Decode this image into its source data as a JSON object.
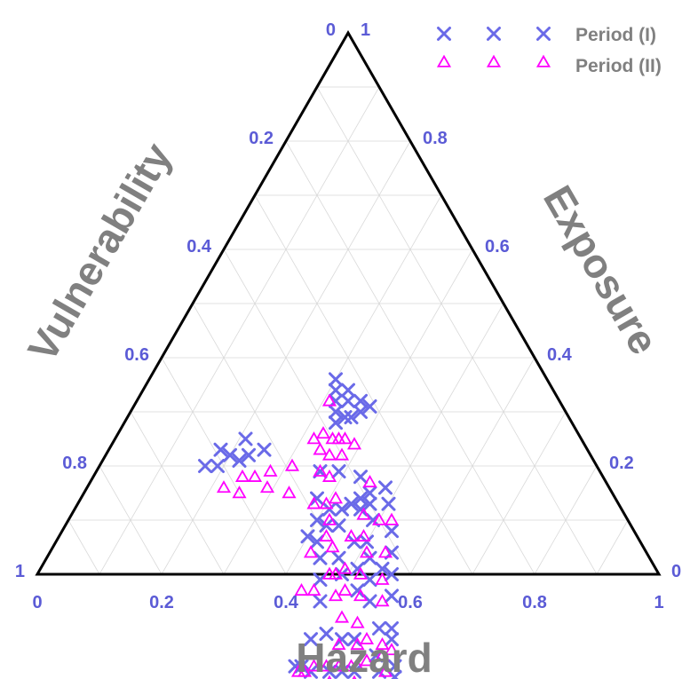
{
  "colors": {
    "axis": "#000000",
    "grid": "#d9d9d9",
    "tick_label": "#5b5bd6",
    "axis_title": "#808080",
    "legend_text": "#808080",
    "period1": "#6a6ae8",
    "period2": "#ff00ff"
  },
  "chart_data": {
    "type": "scatter",
    "subtype": "ternary",
    "axes": {
      "bottom": {
        "label": "Hazard",
        "ticks": [
          "0",
          "0.2",
          "0.4",
          "0.6",
          "0.8",
          "1"
        ]
      },
      "left": {
        "label": "Vulnerability",
        "ticks": [
          "0",
          "0.2",
          "0.4",
          "0.6",
          "0.8",
          "1"
        ]
      },
      "right": {
        "label": "Exposure",
        "ticks": [
          "1",
          "0.8",
          "0.6",
          "0.4",
          "0.2",
          "0"
        ]
      }
    },
    "grid": true,
    "legend": {
      "position": "top-right"
    },
    "series": [
      {
        "name": "Period (I)",
        "marker": "x",
        "points": [
          [
            0.32,
            0.36
          ],
          [
            0.33,
            0.37
          ],
          [
            0.34,
            0.38
          ],
          [
            0.35,
            0.36
          ],
          [
            0.36,
            0.35
          ],
          [
            0.34,
            0.34
          ],
          [
            0.31,
            0.35
          ],
          [
            0.33,
            0.33
          ],
          [
            0.37,
            0.33
          ],
          [
            0.36,
            0.32
          ],
          [
            0.38,
            0.31
          ],
          [
            0.3,
            0.34
          ],
          [
            0.18,
            0.59
          ],
          [
            0.2,
            0.58
          ],
          [
            0.22,
            0.57
          ],
          [
            0.21,
            0.54
          ],
          [
            0.25,
            0.52
          ],
          [
            0.17,
            0.63
          ],
          [
            0.19,
            0.61
          ],
          [
            0.23,
            0.55
          ],
          [
            0.36,
            0.45
          ],
          [
            0.38,
            0.48
          ],
          [
            0.4,
            0.5
          ],
          [
            0.42,
            0.49
          ],
          [
            0.41,
            0.47
          ],
          [
            0.44,
            0.43
          ],
          [
            0.45,
            0.41
          ],
          [
            0.47,
            0.4
          ],
          [
            0.46,
            0.42
          ],
          [
            0.43,
            0.45
          ],
          [
            0.4,
            0.53
          ],
          [
            0.44,
            0.53
          ],
          [
            0.48,
            0.46
          ],
          [
            0.5,
            0.44
          ],
          [
            0.52,
            0.45
          ],
          [
            0.55,
            0.44
          ],
          [
            0.54,
            0.47
          ],
          [
            0.56,
            0.49
          ],
          [
            0.51,
            0.48
          ],
          [
            0.53,
            0.5
          ],
          [
            0.49,
            0.51
          ],
          [
            0.47,
            0.5
          ],
          [
            0.59,
            0.45
          ],
          [
            0.6,
            0.5
          ],
          [
            0.62,
            0.48
          ],
          [
            0.63,
            0.49
          ],
          [
            0.62,
            0.53
          ],
          [
            0.66,
            0.51
          ],
          [
            0.67,
            0.52
          ],
          [
            0.64,
            0.54
          ],
          [
            0.57,
            0.55
          ],
          [
            0.55,
            0.57
          ],
          [
            0.52,
            0.59
          ],
          [
            0.5,
            0.62
          ],
          [
            0.51,
            0.66
          ],
          [
            0.5,
            0.67
          ],
          [
            0.53,
            0.65
          ],
          [
            0.56,
            0.62
          ],
          [
            0.58,
            0.6
          ],
          [
            0.6,
            0.58
          ],
          [
            0.59,
            0.62
          ],
          [
            0.46,
            0.39
          ],
          [
            0.48,
            0.36
          ],
          [
            0.5,
            0.37
          ],
          [
            0.53,
            0.39
          ],
          [
            0.55,
            0.41
          ],
          [
            0.57,
            0.43
          ],
          [
            0.44,
            0.47
          ],
          [
            0.42,
            0.52
          ],
          [
            0.46,
            0.55
          ],
          [
            0.48,
            0.57
          ],
          [
            0.49,
            0.41
          ],
          [
            0.43,
            0.39
          ],
          [
            0.39,
            0.42
          ]
        ]
      },
      {
        "name": "Period (II)",
        "marker": "triangle",
        "points": [
          [
            0.35,
            0.4
          ],
          [
            0.36,
            0.42
          ],
          [
            0.38,
            0.44
          ],
          [
            0.33,
            0.41
          ],
          [
            0.37,
            0.38
          ],
          [
            0.39,
            0.37
          ],
          [
            0.34,
            0.43
          ],
          [
            0.36,
            0.39
          ],
          [
            0.31,
            0.37
          ],
          [
            0.38,
            0.4
          ],
          [
            0.36,
            0.45
          ],
          [
            0.32,
            0.43
          ],
          [
            0.24,
            0.58
          ],
          [
            0.25,
            0.6
          ],
          [
            0.26,
            0.56
          ],
          [
            0.28,
            0.53
          ],
          [
            0.31,
            0.49
          ],
          [
            0.29,
            0.55
          ],
          [
            0.22,
            0.62
          ],
          [
            0.33,
            0.52
          ],
          [
            0.38,
            0.49
          ],
          [
            0.42,
            0.48
          ],
          [
            0.45,
            0.5
          ],
          [
            0.47,
            0.46
          ],
          [
            0.49,
            0.44
          ],
          [
            0.51,
            0.45
          ],
          [
            0.52,
            0.48
          ],
          [
            0.54,
            0.5
          ],
          [
            0.56,
            0.53
          ],
          [
            0.58,
            0.55
          ],
          [
            0.6,
            0.57
          ],
          [
            0.61,
            0.55
          ],
          [
            0.63,
            0.52
          ],
          [
            0.65,
            0.53
          ],
          [
            0.64,
            0.5
          ],
          [
            0.62,
            0.51
          ],
          [
            0.59,
            0.53
          ],
          [
            0.57,
            0.6
          ],
          [
            0.55,
            0.62
          ],
          [
            0.53,
            0.64
          ],
          [
            0.52,
            0.66
          ],
          [
            0.51,
            0.67
          ],
          [
            0.54,
            0.68
          ],
          [
            0.56,
            0.66
          ],
          [
            0.58,
            0.65
          ],
          [
            0.6,
            0.63
          ],
          [
            0.57,
            0.63
          ],
          [
            0.5,
            0.54
          ],
          [
            0.48,
            0.52
          ],
          [
            0.46,
            0.57
          ],
          [
            0.44,
            0.59
          ],
          [
            0.42,
            0.54
          ],
          [
            0.4,
            0.47
          ],
          [
            0.47,
            0.42
          ],
          [
            0.5,
            0.4
          ],
          [
            0.52,
            0.38
          ],
          [
            0.54,
            0.42
          ],
          [
            0.56,
            0.45
          ],
          [
            0.58,
            0.47
          ],
          [
            0.49,
            0.5
          ],
          [
            0.51,
            0.52
          ],
          [
            0.53,
            0.55
          ],
          [
            0.55,
            0.58
          ],
          [
            0.43,
            0.5
          ],
          [
            0.41,
            0.45
          ],
          [
            0.47,
            0.53
          ],
          [
            0.45,
            0.38
          ],
          [
            0.6,
            0.61
          ],
          [
            0.61,
            0.59
          ],
          [
            0.59,
            0.58
          ]
        ]
      }
    ]
  }
}
